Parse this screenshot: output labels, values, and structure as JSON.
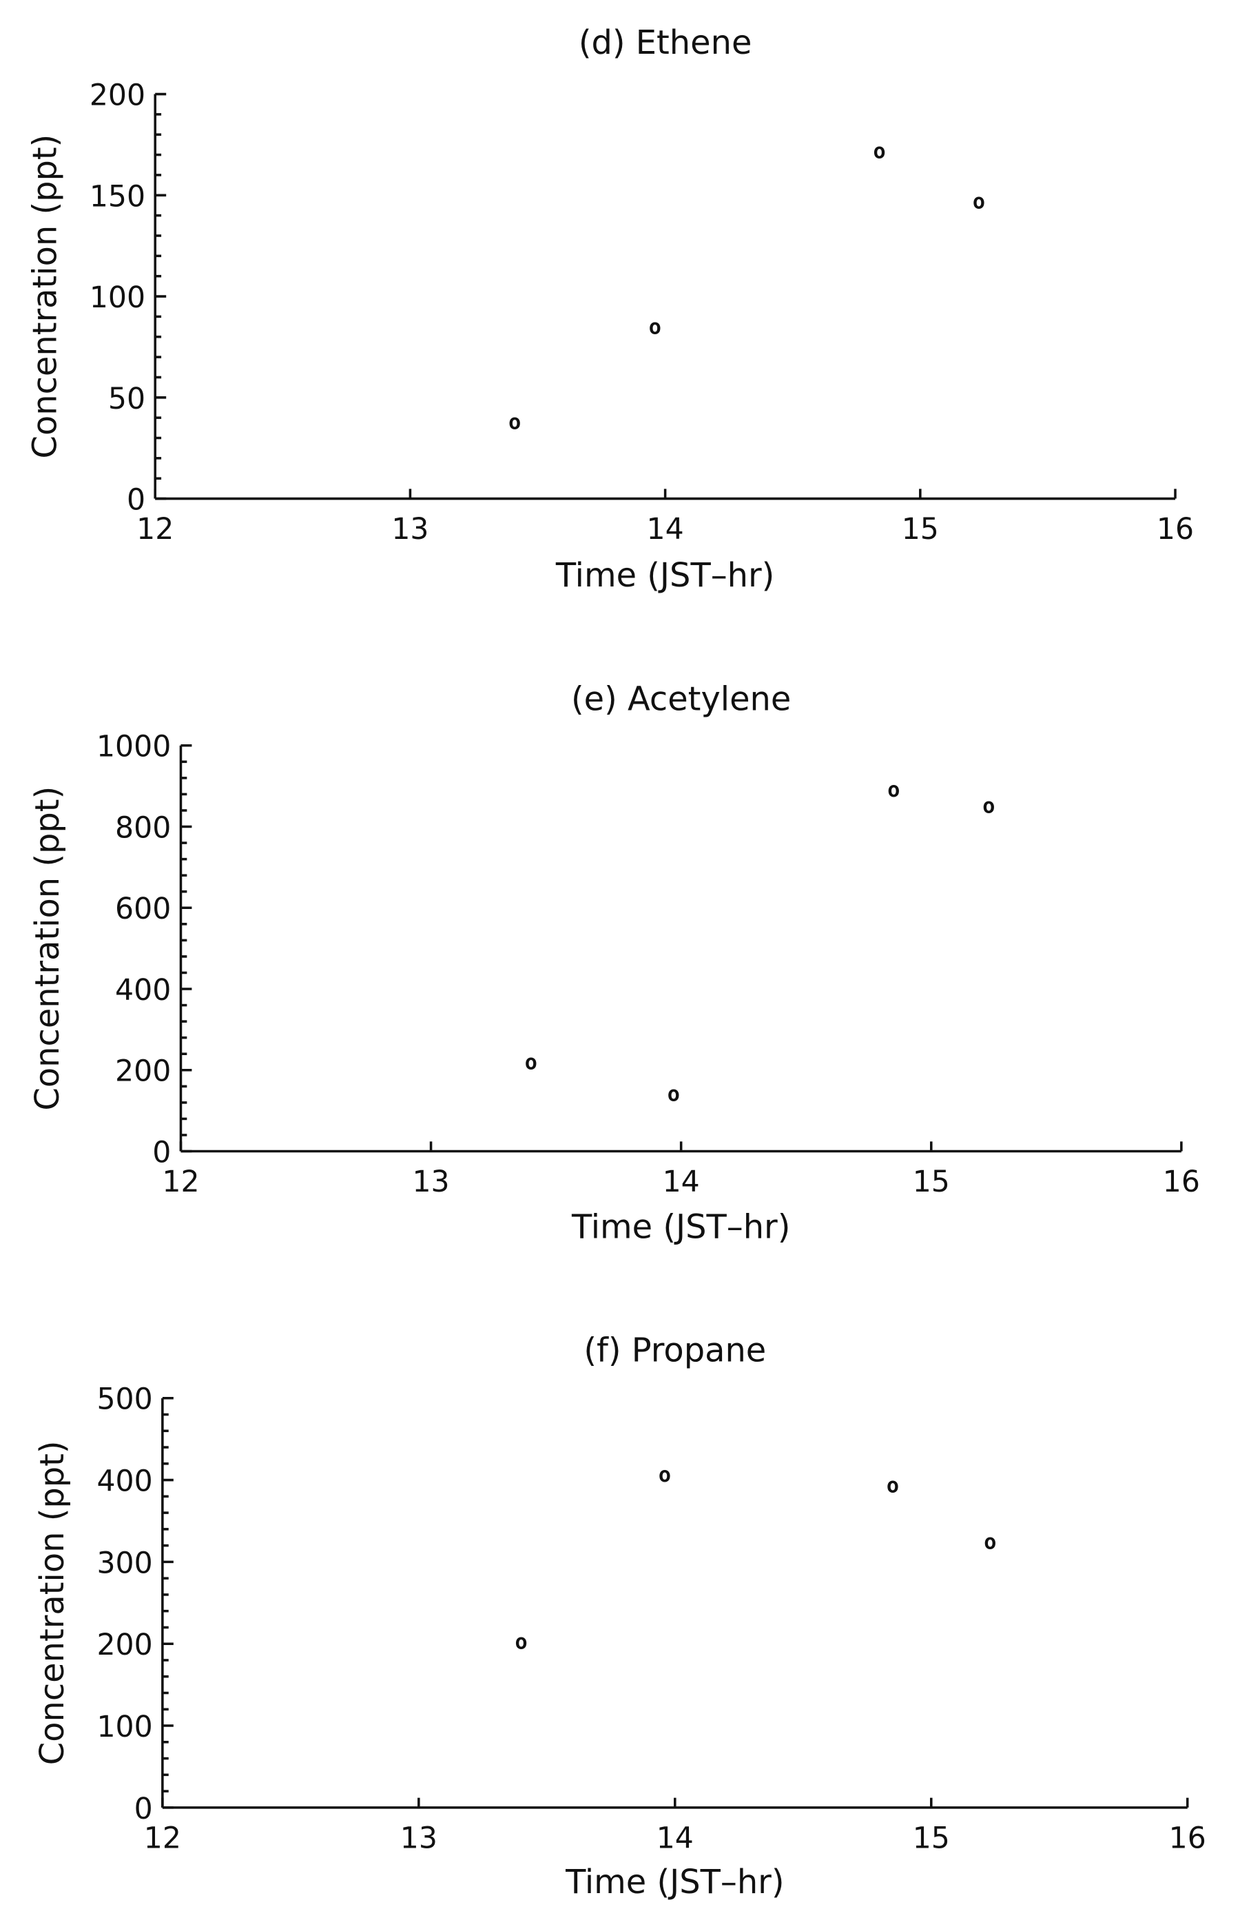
{
  "chart_data": [
    {
      "type": "scatter",
      "title": "(d) Ethene",
      "xlabel": "Time    (JST–hr)",
      "ylabel": "Concentration    (ppt)",
      "xlim": [
        12,
        16
      ],
      "ylim": [
        0,
        200
      ],
      "xticks": [
        "12",
        "13",
        "14",
        "15",
        "16"
      ],
      "yticks": [
        "0",
        "50",
        "100",
        "150",
        "200"
      ],
      "marker": "o",
      "x": [
        13.41,
        13.96,
        14.84,
        15.23
      ],
      "y": [
        38,
        85,
        172,
        147
      ]
    },
    {
      "type": "scatter",
      "title": "(e) Acetylene",
      "xlabel": "Time    (JST–hr)",
      "ylabel": "Concentration    (ppt)",
      "xlim": [
        12,
        16
      ],
      "ylim": [
        0,
        1000
      ],
      "xticks": [
        "12",
        "13",
        "14",
        "15",
        "16"
      ],
      "yticks": [
        "0",
        "200",
        "400",
        "600",
        "800",
        "1000"
      ],
      "marker": "o",
      "x": [
        13.4,
        13.97,
        14.85,
        15.23
      ],
      "y": [
        220,
        142,
        892,
        852
      ]
    },
    {
      "type": "scatter",
      "title": "(f) Propane",
      "xlabel": "Time    (JST–hr)",
      "ylabel": "Concentration    (ppt)",
      "xlim": [
        12,
        16
      ],
      "ylim": [
        0,
        500
      ],
      "xticks": [
        "12",
        "13",
        "14",
        "15",
        "16"
      ],
      "yticks": [
        "0",
        "100",
        "200",
        "300",
        "400",
        "500"
      ],
      "marker": "o",
      "x": [
        13.4,
        13.96,
        14.85,
        15.23
      ],
      "y": [
        203,
        407,
        394,
        325
      ]
    }
  ]
}
